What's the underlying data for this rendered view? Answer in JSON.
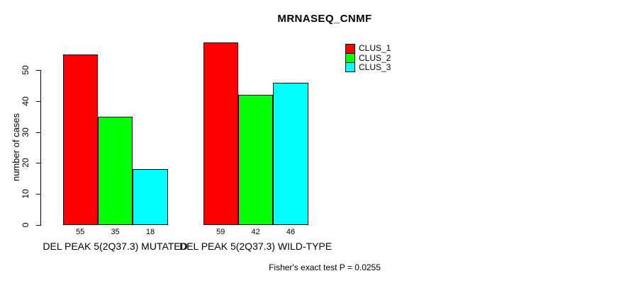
{
  "chart_data": {
    "type": "bar",
    "title": "MRNASEQ_CNMF",
    "ylabel": "number of cases",
    "yticks": [
      0,
      10,
      20,
      30,
      40,
      50
    ],
    "ylim": [
      0,
      59
    ],
    "grid": false,
    "legend_position": "top-right",
    "series": [
      {
        "name": "CLUS_1",
        "color": "#FF0000"
      },
      {
        "name": "CLUS_2",
        "color": "#00FF00"
      },
      {
        "name": "CLUS_3",
        "color": "#00FFFF"
      }
    ],
    "groups": [
      {
        "label": "DEL PEAK 5(2Q37.3) MUTATED",
        "values": [
          55,
          35,
          18
        ]
      },
      {
        "label": "DEL PEAK 5(2Q37.3) WILD-TYPE",
        "values": [
          59,
          42,
          46
        ]
      }
    ],
    "annotation": "Fisher's exact test P = 0.0255"
  }
}
